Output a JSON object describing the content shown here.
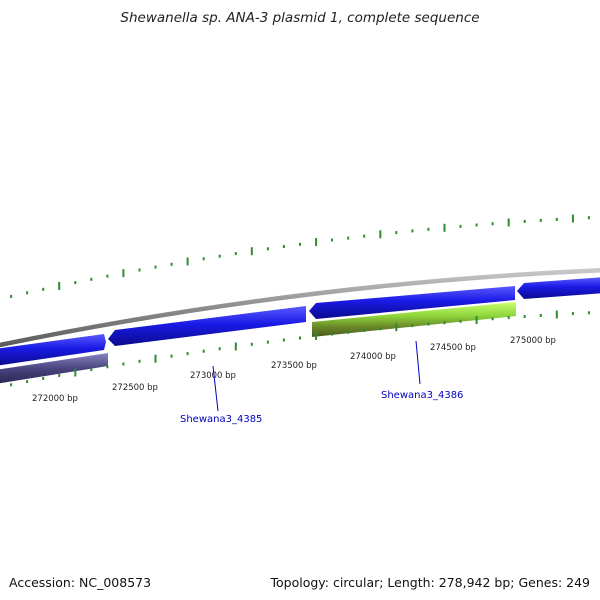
{
  "title": "Shewanella sp. ANA-3 plasmid 1, complete sequence",
  "footer": {
    "accession": "Accession: NC_008573",
    "summary": "Topology: circular; Length: 278,942 bp; Genes: 249"
  },
  "colors": {
    "backbone": "#8c8c8c",
    "forward_gene": "#1a1ae6",
    "reverse_dark_gene": "#4a4480",
    "reverse_green_gene": "#8ed43a",
    "tick": "#2e8b2e",
    "label_blue": "#0000c0"
  },
  "axis": {
    "position_labels": [
      {
        "bp": 272000,
        "text": "272000 bp"
      },
      {
        "bp": 272500,
        "text": "272500 bp"
      },
      {
        "bp": 273000,
        "text": "273000 bp"
      },
      {
        "bp": 273500,
        "text": "273500 bp"
      },
      {
        "bp": 274000,
        "text": "274000 bp"
      },
      {
        "bp": 274500,
        "text": "274500 bp"
      },
      {
        "bp": 275000,
        "text": "275000 bp"
      }
    ]
  },
  "genes": [
    {
      "name": "forward-gene-1",
      "start_bp": 271700,
      "end_bp": 272350,
      "strand": "+",
      "color_key": "forward_gene"
    },
    {
      "name": "forward-gene-2",
      "start_bp": 272380,
      "end_bp": 273810,
      "strand": "-",
      "color_key": "forward_gene"
    },
    {
      "name": "forward-gene-3",
      "start_bp": 273840,
      "end_bp": 275080,
      "strand": "-",
      "color_key": "forward_gene"
    },
    {
      "name": "forward-gene-4",
      "start_bp": 275110,
      "end_bp": 275700,
      "strand": "-",
      "color_key": "forward_gene"
    },
    {
      "name": "reverse-gene-dark",
      "start_bp": 271700,
      "end_bp": 272350,
      "strand": "-",
      "color_key": "reverse_dark_gene"
    },
    {
      "name": "reverse-gene-green",
      "start_bp": 273840,
      "end_bp": 275080,
      "strand": "-",
      "color_key": "reverse_green_gene"
    }
  ],
  "gene_labels": [
    {
      "text": "Shewana3_4385"
    },
    {
      "text": "Shewana3_4386"
    }
  ]
}
